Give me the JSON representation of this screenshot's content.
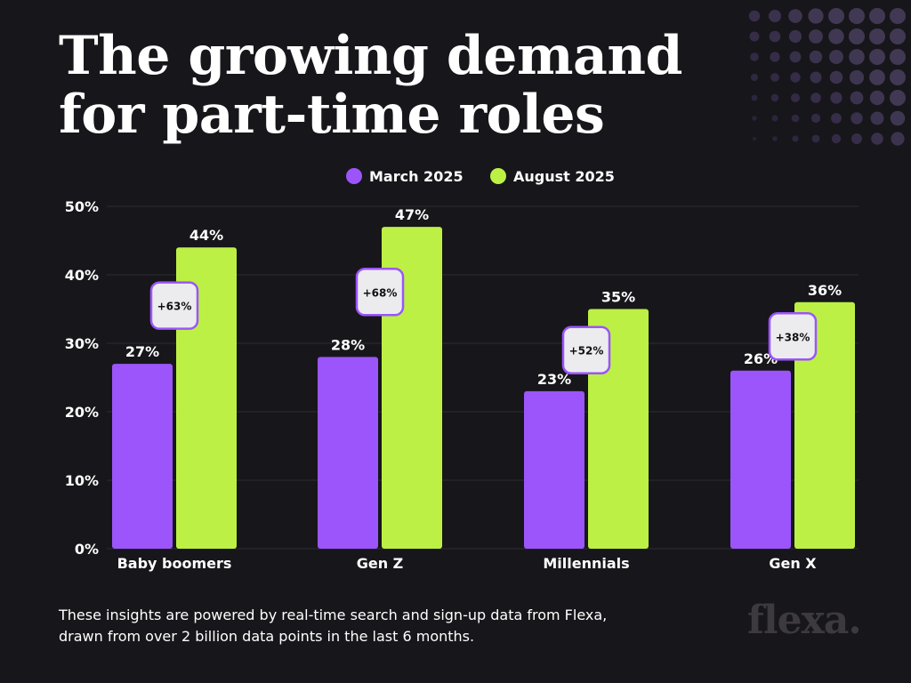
{
  "title": {
    "line1": "The growing demand",
    "line2": "for part-time roles"
  },
  "footnote": {
    "line1": "These insights are powered by real-time search and sign-up data from Flexa,",
    "line2": "drawn from over 2 billion data points in the last 6 months."
  },
  "brand": "flexa.",
  "colors": {
    "background": "#17161a",
    "march": "#9b55fa",
    "august": "#bdf044",
    "grid": "#2e2c33",
    "badge_border": "#9b55fa",
    "badge_fill": "#ececef"
  },
  "chart_data": {
    "type": "bar",
    "title": "The growing demand for part-time roles",
    "xlabel": "",
    "ylabel": "",
    "categories": [
      "Baby boomers",
      "Gen Z",
      "Millennials",
      "Gen X"
    ],
    "series": [
      {
        "name": "March 2025",
        "values": [
          27,
          28,
          23,
          26
        ]
      },
      {
        "name": "August 2025",
        "values": [
          44,
          47,
          35,
          36
        ]
      }
    ],
    "growth_labels": [
      "+63%",
      "+68%",
      "+52%",
      "+38%"
    ],
    "ylim": [
      0,
      50
    ],
    "yticks": [
      0,
      10,
      20,
      30,
      40,
      50
    ],
    "value_suffix": "%",
    "legend_position": "top-center",
    "grid": true
  }
}
